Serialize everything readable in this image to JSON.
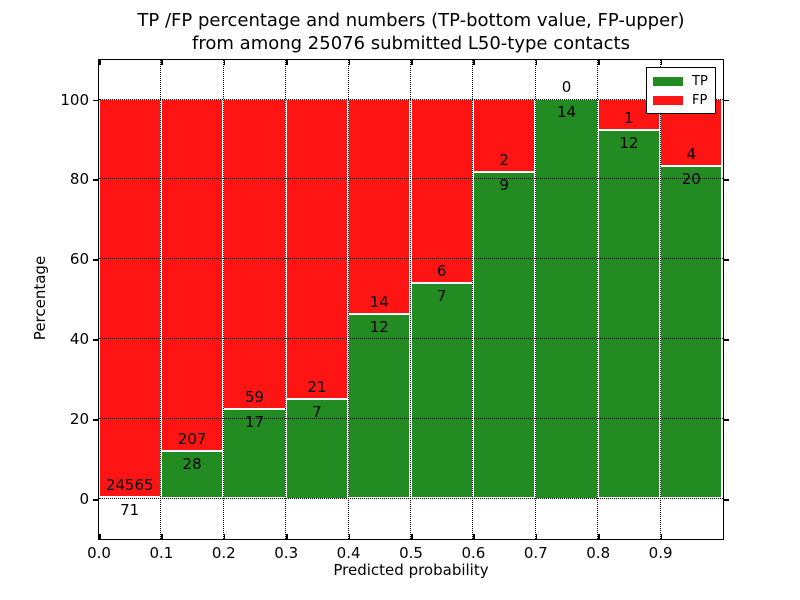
{
  "title": {
    "line1": "TP /FP percentage and numbers (TP-bottom value, FP-upper)",
    "line2": "from among 25076 submitted L50-type contacts"
  },
  "axes": {
    "xlabel": "Predicted probability",
    "ylabel": "Percentage",
    "x_tick_labels": [
      "0.0",
      "0.1",
      "0.2",
      "0.3",
      "0.4",
      "0.5",
      "0.6",
      "0.7",
      "0.8",
      "0.9"
    ],
    "x_tick_values": [
      0.0,
      0.1,
      0.2,
      0.3,
      0.4,
      0.5,
      0.6,
      0.7,
      0.8,
      0.9
    ],
    "y_tick_labels": [
      "0",
      "20",
      "40",
      "60",
      "80",
      "100"
    ],
    "y_tick_values": [
      0,
      20,
      40,
      60,
      80,
      100
    ],
    "xlim": [
      0.0,
      1.0
    ],
    "ylim": [
      -10,
      109.9
    ],
    "grid_style": "dotted"
  },
  "legend": {
    "position": "upper right",
    "items": [
      {
        "label": "TP",
        "color": "#228b22"
      },
      {
        "label": "FP",
        "color": "#ff1414"
      }
    ]
  },
  "chart_data": {
    "type": "bar",
    "stacked": true,
    "orientation": "vertical",
    "bin_width": 0.1,
    "bin_edges": [
      0.0,
      0.1,
      0.2,
      0.3,
      0.4,
      0.5,
      0.6,
      0.7,
      0.8,
      0.9,
      1.0
    ],
    "categories": [
      "0.0-0.1",
      "0.1-0.2",
      "0.2-0.3",
      "0.3-0.4",
      "0.4-0.5",
      "0.5-0.6",
      "0.6-0.7",
      "0.7-0.8",
      "0.8-0.9",
      "0.9-1.0"
    ],
    "series": [
      {
        "name": "TP",
        "color": "#228b22",
        "counts": [
          71,
          28,
          17,
          7,
          12,
          7,
          9,
          14,
          12,
          20
        ]
      },
      {
        "name": "FP",
        "color": "#ff1414",
        "counts": [
          24565,
          207,
          59,
          21,
          14,
          6,
          2,
          0,
          1,
          4
        ]
      }
    ],
    "tp_percent_of_bin": [
      0.29,
      11.91,
      22.37,
      25.0,
      46.15,
      53.85,
      81.82,
      100.0,
      92.31,
      83.33
    ],
    "total_submitted": 25076,
    "title": "TP /FP percentage and numbers (TP-bottom value, FP-upper) from among 25076 submitted L50-type contacts",
    "xlabel": "Predicted probability",
    "ylabel": "Percentage",
    "legend_position": "upper right",
    "grid": "dotted on"
  }
}
